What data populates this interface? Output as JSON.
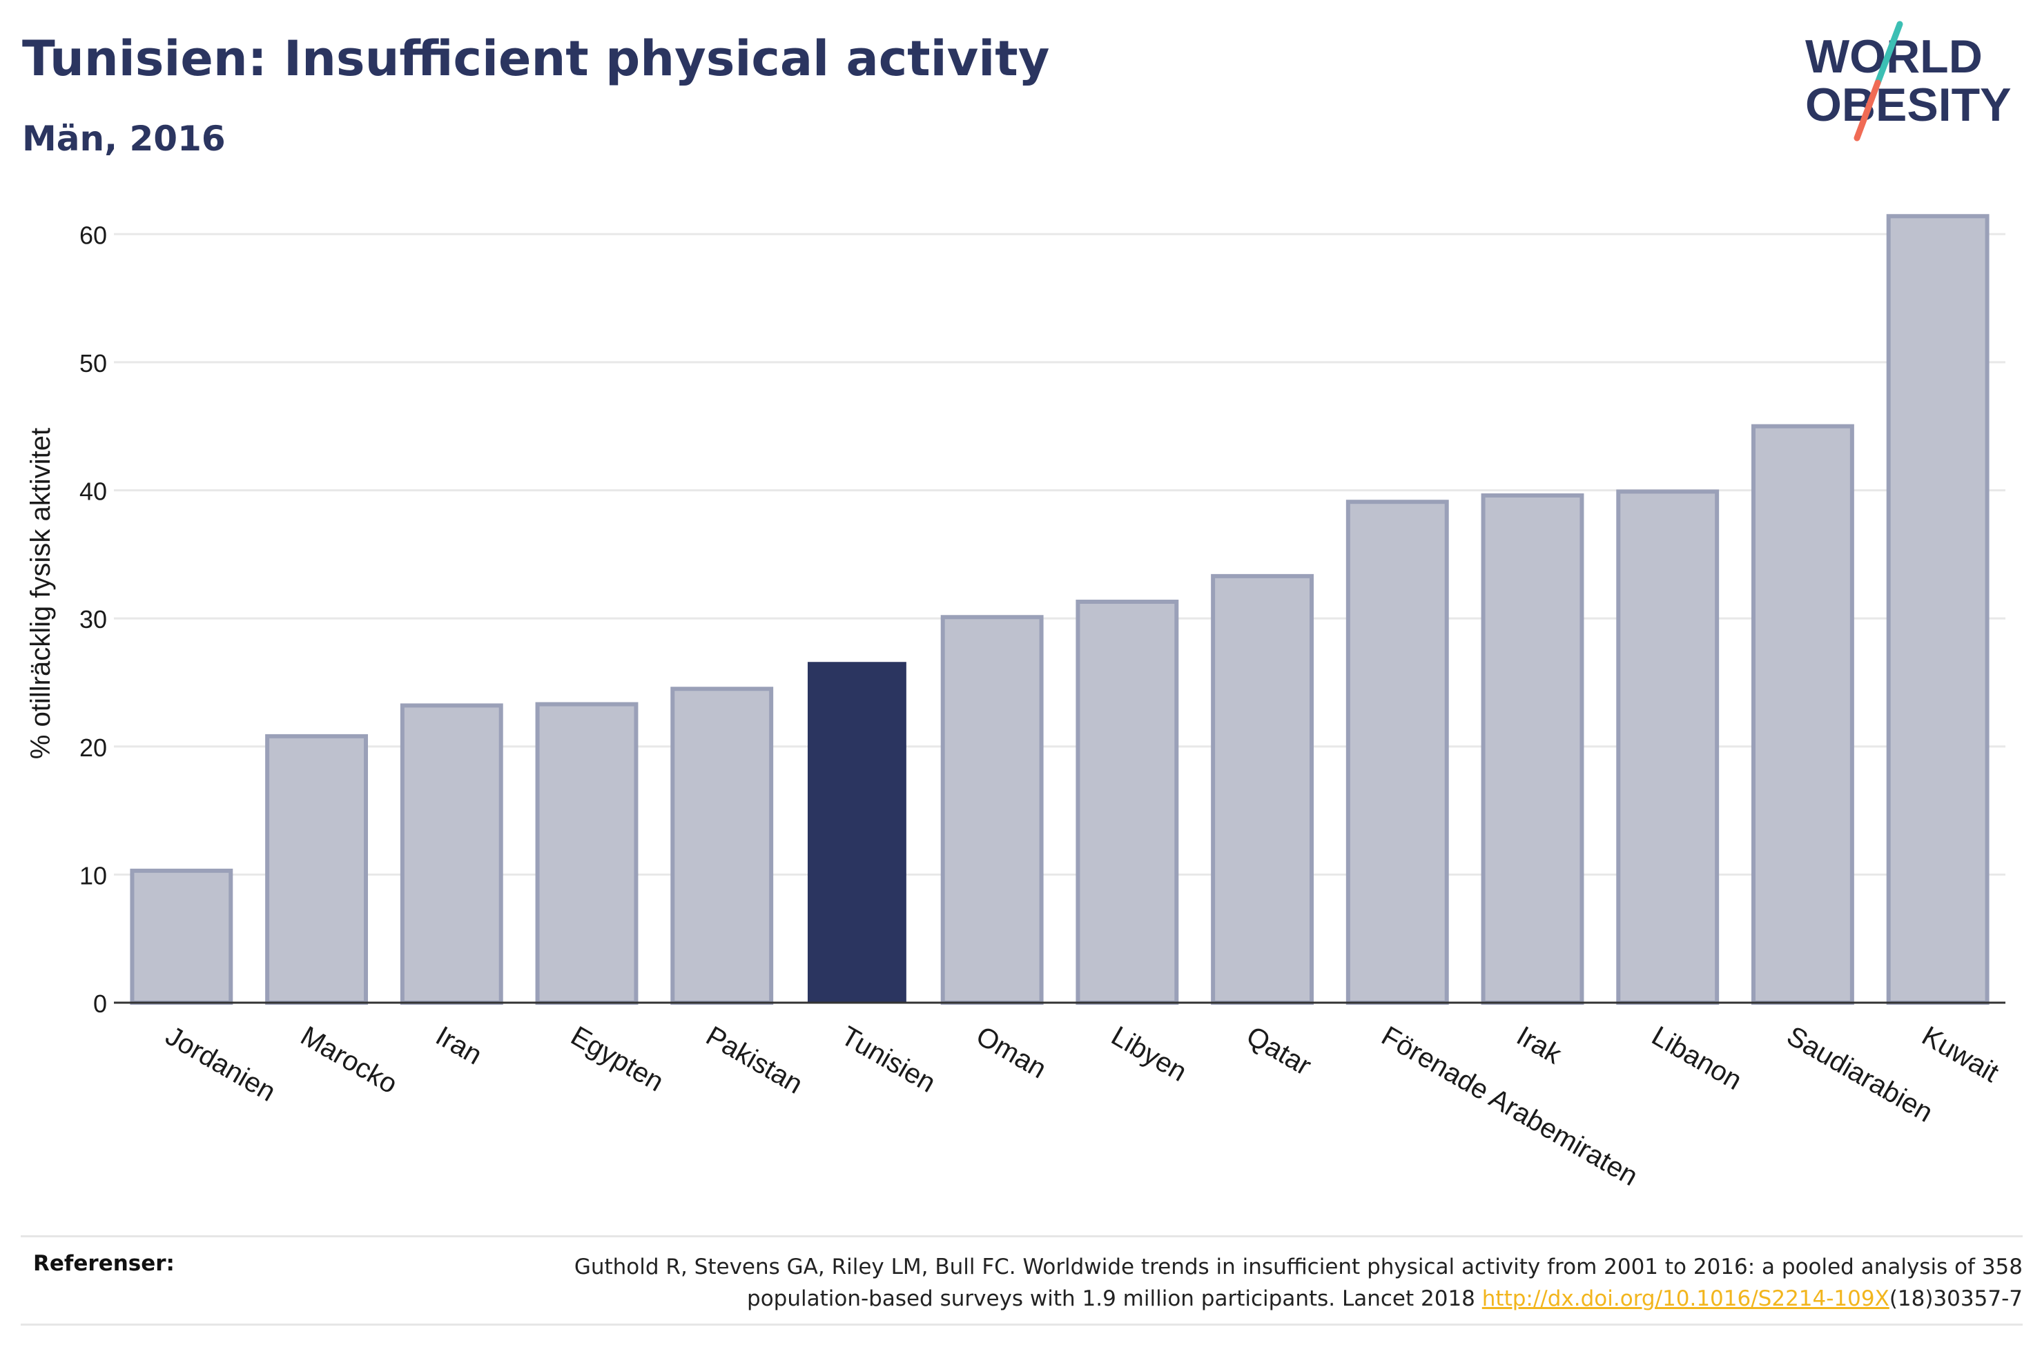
{
  "header": {
    "title": "Tunisien: Insufficient physical activity",
    "subtitle": "Män, 2016"
  },
  "logo": {
    "line1": "WORLD",
    "line2": "OBESITY",
    "slash_colors": [
      "#3cbfb4",
      "#f06b55"
    ],
    "text_color": "#2b3560"
  },
  "references": {
    "label": "Referenser:",
    "text_line1": "Guthold R, Stevens GA, Riley LM, Bull FC. Worldwide trends in insufficient physical activity from 2001 to 2016: a pooled analysis of 358",
    "text_line2": "population-based surveys with 1.9 million participants. Lancet 2018",
    "link": "http://dx.doi.org/10.1016/S2214-109X",
    "link_suffix": "(18)30357-7"
  },
  "colors": {
    "highlight": "#2b3560",
    "bar_fill": "#bec1ce",
    "bar_border": "#9aa0b8",
    "grid": "#e8e8e8",
    "axis": "#333333",
    "text": "#1a1a1a"
  },
  "chart_data": {
    "type": "bar",
    "title": "Tunisien: Insufficient physical activity",
    "subtitle": "Män, 2016",
    "xlabel": "",
    "ylabel": "% otillräcklig fysisk aktivitet",
    "ylim": [
      0,
      64
    ],
    "yticks": [
      0,
      10,
      20,
      30,
      40,
      50,
      60
    ],
    "grid": true,
    "highlight_category": "Tunisien",
    "categories": [
      "Jordanien",
      "Marocko",
      "Iran",
      "Egypten",
      "Pakistan",
      "Tunisien",
      "Oman",
      "Libyen",
      "Qatar",
      "Förenade Arabemiraten",
      "Irak",
      "Libanon",
      "Saudiarabien",
      "Kuwait"
    ],
    "values": [
      10.3,
      20.8,
      23.2,
      23.3,
      24.5,
      26.6,
      30.1,
      31.3,
      33.3,
      39.1,
      39.6,
      39.9,
      45.0,
      61.4
    ]
  }
}
